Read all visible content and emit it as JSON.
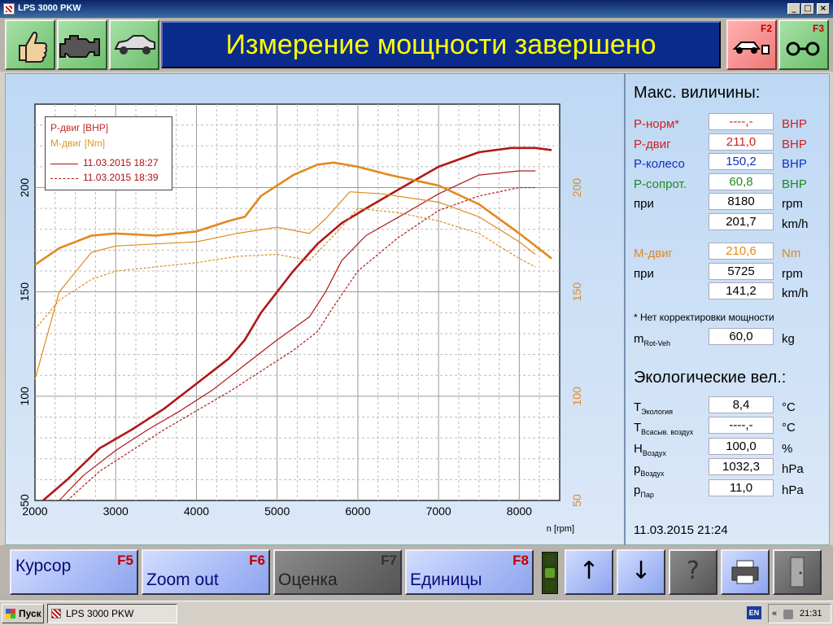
{
  "window": {
    "title": "LPS 3000 PKW",
    "min": "_",
    "max": "□",
    "close": "×"
  },
  "toolbar": {
    "banner": "Измерение мощности завершено",
    "f2_key": "F2",
    "f3_key": "F3"
  },
  "chart_data": {
    "type": "line",
    "xlabel": "n [rpm]",
    "x_ticks": [
      "2000",
      "3000",
      "4000",
      "5000",
      "6000",
      "7000",
      "8000"
    ],
    "xlim": [
      2000,
      8500
    ],
    "y_left_ticks": [
      "50",
      "100",
      "150",
      "200"
    ],
    "y_left_lim": [
      50,
      240
    ],
    "y_right_ticks": [
      "50",
      "100",
      "150",
      "200"
    ],
    "y_right_lim": [
      50,
      240
    ],
    "grid": true,
    "legend": {
      "position": "top-left",
      "series_p": "Р-двиг [BHP]",
      "series_m": "М-двиг [Nm]",
      "run1": "11.03.2015 18:27",
      "run2": "11.03.2015 18:39"
    },
    "series": [
      {
        "name": "Р-двиг [BHP]",
        "run": "11.03.2015 18:27",
        "color": "#b01818",
        "style": "solid",
        "bold": true,
        "x": [
          2100,
          2400,
          2800,
          3200,
          3600,
          4000,
          4400,
          4600,
          4800,
          5200,
          5500,
          5800,
          6100,
          6500,
          7000,
          7500,
          7900,
          8200,
          8400
        ],
        "y": [
          50,
          60,
          75,
          84,
          94,
          106,
          118,
          127,
          140,
          160,
          173,
          183,
          190,
          199,
          210,
          217,
          219,
          219,
          218
        ]
      },
      {
        "name": "Р-двиг [BHP]",
        "run": "11.03.2015 18:39",
        "color": "#b01818",
        "style": "solid",
        "bold": false,
        "x": [
          2300,
          2600,
          3000,
          3400,
          3800,
          4200,
          4600,
          5000,
          5400,
          5600,
          5800,
          6100,
          6600,
          7000,
          7500,
          8000,
          8200
        ],
        "y": [
          50,
          62,
          74,
          84,
          93,
          103,
          115,
          127,
          138,
          150,
          165,
          177,
          188,
          197,
          206,
          208,
          208
        ]
      },
      {
        "name": "Р-двиг [BHP]",
        "run": "11.03.2015 18:39",
        "color": "#b01818",
        "style": "dashed",
        "bold": false,
        "x": [
          2400,
          2800,
          3200,
          3600,
          4000,
          4400,
          4800,
          5200,
          5500,
          5700,
          6000,
          6500,
          7000,
          7500,
          8000,
          8200
        ],
        "y": [
          50,
          64,
          74,
          84,
          93,
          102,
          112,
          122,
          131,
          143,
          160,
          176,
          189,
          196,
          200,
          200
        ]
      },
      {
        "name": "М-двиг [Nm]",
        "run": "11.03.2015 18:27",
        "color": "#e08a1c",
        "style": "solid",
        "bold": true,
        "x": [
          2000,
          2300,
          2700,
          3000,
          3500,
          4000,
          4400,
          4600,
          4800,
          5200,
          5500,
          5700,
          6000,
          6400,
          7000,
          7500,
          8000,
          8400
        ],
        "y": [
          163,
          171,
          177,
          178,
          177,
          179,
          184,
          186,
          196,
          206,
          211,
          212,
          210,
          206,
          201,
          192,
          178,
          166
        ]
      },
      {
        "name": "М-двиг [Nm]",
        "run": "11.03.2015 18:39",
        "color": "#e08a1c",
        "style": "solid",
        "bold": false,
        "x": [
          2000,
          2300,
          2700,
          3000,
          3500,
          4000,
          4500,
          5000,
          5400,
          5600,
          5900,
          6300,
          7000,
          7500,
          8000,
          8200
        ],
        "y": [
          108,
          150,
          169,
          172,
          173,
          174,
          178,
          181,
          178,
          185,
          198,
          197,
          193,
          186,
          174,
          168
        ]
      },
      {
        "name": "М-двиг [Nm]",
        "run": "11.03.2015 18:39",
        "color": "#e08a1c",
        "style": "dashed",
        "bold": false,
        "x": [
          2000,
          2300,
          2700,
          3000,
          3500,
          4000,
          4500,
          5000,
          5400,
          5700,
          6000,
          6500,
          7000,
          7500,
          8000,
          8200
        ],
        "y": [
          132,
          146,
          156,
          160,
          162,
          164,
          167,
          168,
          165,
          177,
          190,
          188,
          184,
          178,
          166,
          162
        ]
      }
    ]
  },
  "right": {
    "title": "Макс. виличины:",
    "rows": [
      {
        "label": "Р-норм*",
        "value": "----,-",
        "unit": "BHP"
      },
      {
        "label": "Р-двиг",
        "value": "211,0",
        "unit": "BHP"
      },
      {
        "label": "Р-колесо",
        "value": "150,2",
        "unit": "BHP"
      },
      {
        "label": "Р-сопрот.",
        "value": "60,8",
        "unit": "BHP"
      },
      {
        "label": "при",
        "value": "8180",
        "unit": "rpm"
      },
      {
        "label": "",
        "value": "201,7",
        "unit": "km/h"
      },
      {
        "label": "М-двиг",
        "value": "210,6",
        "unit": "Nm"
      },
      {
        "label": "при",
        "value": "5725",
        "unit": "rpm"
      },
      {
        "label": "",
        "value": "141,2",
        "unit": "km/h"
      }
    ],
    "note": "* Нет корректировки мощности",
    "m_label": "m",
    "m_sub": "Rot-Veh",
    "m_value": "60,0",
    "m_unit": "kg",
    "eco_title": "Экологические вел.:",
    "eco_rows": [
      {
        "label": "T",
        "sub": "Экология",
        "value": "8,4",
        "unit": "°C"
      },
      {
        "label": "T",
        "sub": "Всасыв. воздух",
        "value": "----,-",
        "unit": "°C"
      },
      {
        "label": "H",
        "sub": "Воздух",
        "value": "100,0",
        "unit": "%"
      },
      {
        "label": "p",
        "sub": "Воздух",
        "value": "1032,3",
        "unit": "hPa"
      },
      {
        "label": "p",
        "sub": "Пар",
        "value": "11,0",
        "unit": "hPa"
      }
    ],
    "datetime": "11.03.2015   21:24"
  },
  "bottom": {
    "cursor": "Курсор",
    "cursor_key": "F5",
    "zoom": "Zoom out",
    "zoom_key": "F6",
    "eval": "Оценка",
    "eval_key": "F7",
    "units": "Единицы",
    "units_key": "F8",
    "up": "↑",
    "down": "↓",
    "help": "?"
  },
  "taskbar": {
    "start": "Пуск",
    "task": "LPS 3000 PKW",
    "lang": "EN",
    "chevron": "«",
    "time": "21:31"
  },
  "colors": {
    "banner_bg": "#0b2b8c",
    "banner_text": "#ffff00",
    "power": "#b01818",
    "torque": "#e08a1c",
    "norm": "#d02020",
    "wheel": "#1030c0",
    "loss": "#208a20",
    "torque_label": "#e08a1c"
  },
  "icons": {
    "f1": "thumbs-up-icon",
    "f2": "engine-icon",
    "f3": "car-icon",
    "f2_right": "car-lift-icon",
    "f3_right": "rollers-icon",
    "print": "printer-icon",
    "exit": "door-icon"
  }
}
